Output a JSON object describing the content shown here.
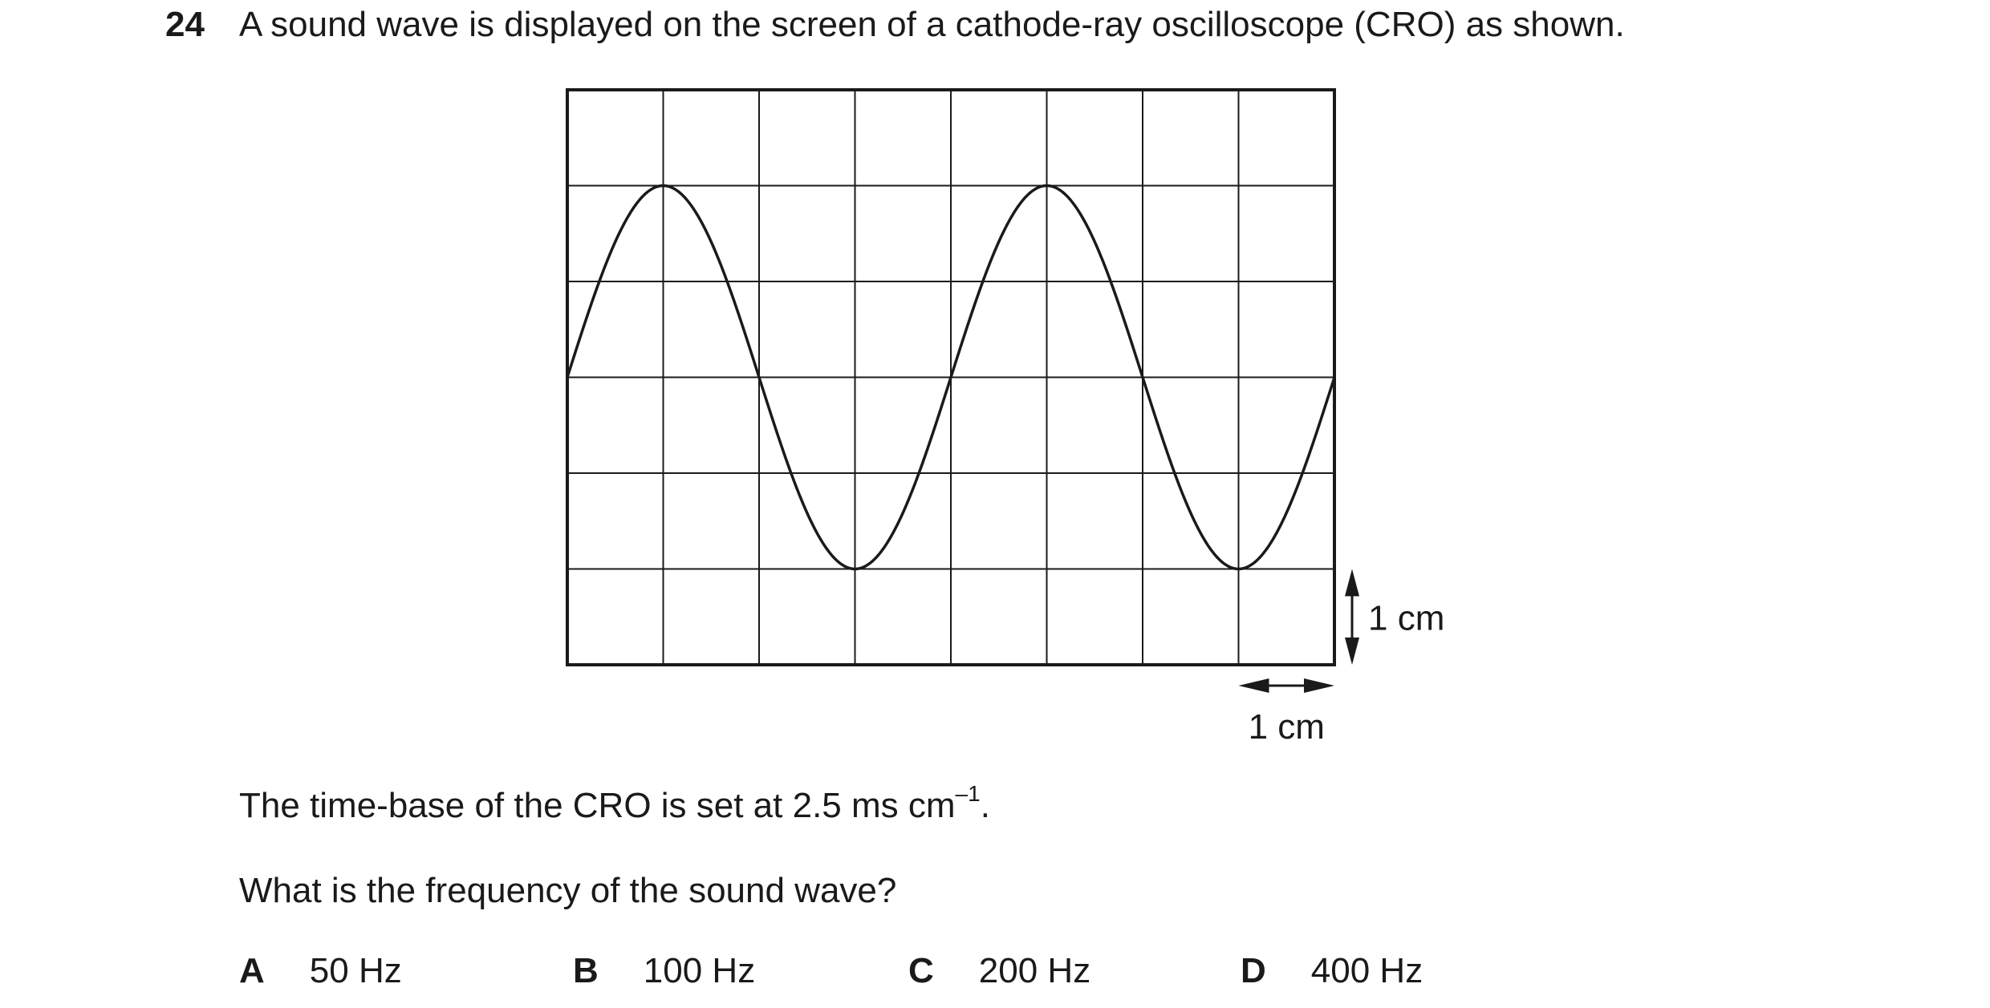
{
  "question": {
    "number": "24",
    "text": "A sound wave is displayed on the screen of a cathode-ray oscilloscope (CRO) as shown."
  },
  "figure": {
    "vertical_scale_label": "1 cm",
    "horizontal_scale_label": "1 cm",
    "grid": {
      "columns": 8,
      "rows": 6
    },
    "wave": {
      "type": "sine",
      "amplitude_cm": 2,
      "wavelength_cm": 4,
      "cycles_shown": 2,
      "start_phase": "zero-crossing-rising"
    },
    "line_color": "#1a1a1a"
  },
  "timebase": {
    "text": "The time-base of the CRO is set at 2.5 ms cm",
    "superscript": "–1",
    "end": "."
  },
  "prompt": "What is the frequency of the sound wave?",
  "options": [
    {
      "letter": "A",
      "value": "50 Hz"
    },
    {
      "letter": "B",
      "value": "100 Hz"
    },
    {
      "letter": "C",
      "value": "200 Hz"
    },
    {
      "letter": "D",
      "value": "400 Hz"
    }
  ]
}
